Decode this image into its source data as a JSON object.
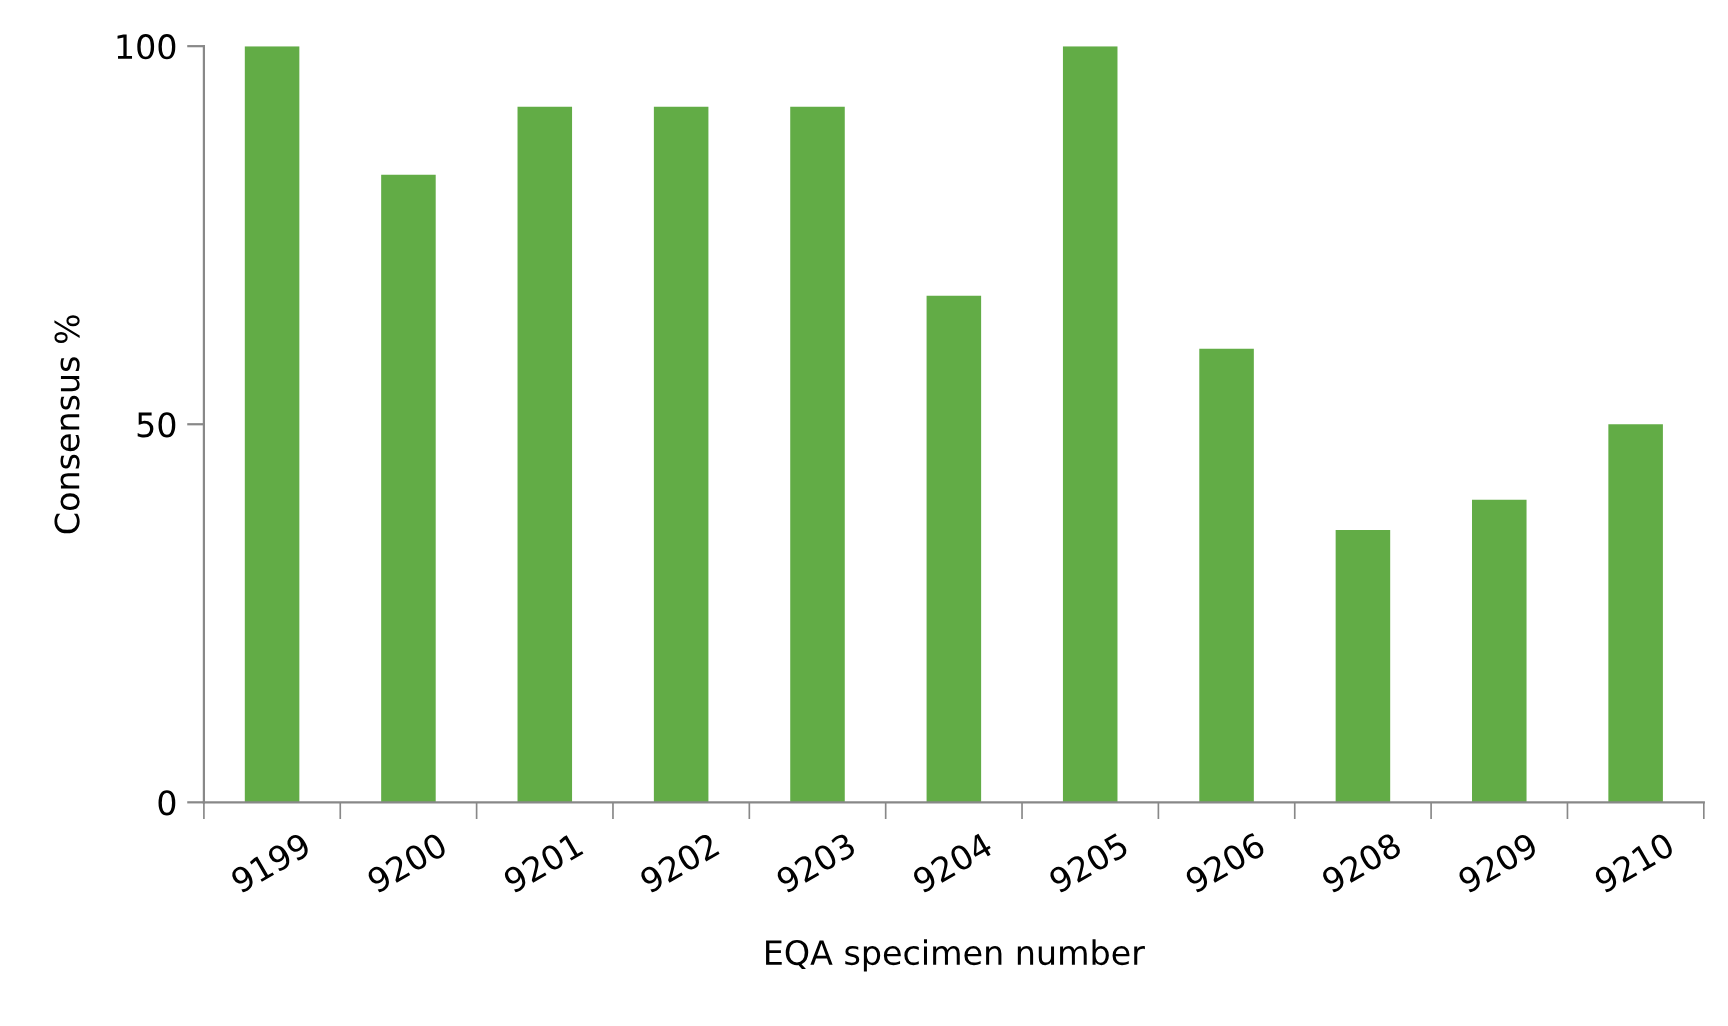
{
  "chart_data": {
    "type": "bar",
    "xlabel": "EQA specimen number",
    "ylabel": "Consensus %",
    "categories": [
      "9199",
      "9200",
      "9201",
      "9202",
      "9203",
      "9204",
      "9205",
      "9206",
      "9208",
      "9209",
      "9210"
    ],
    "values": [
      100,
      83,
      92,
      92,
      92,
      67,
      100,
      60,
      36,
      40,
      50
    ],
    "color": "#62ac46",
    "ylim": [
      0,
      100
    ],
    "yticks": [
      0,
      50,
      100
    ],
    "grid": false,
    "legend": false
  }
}
